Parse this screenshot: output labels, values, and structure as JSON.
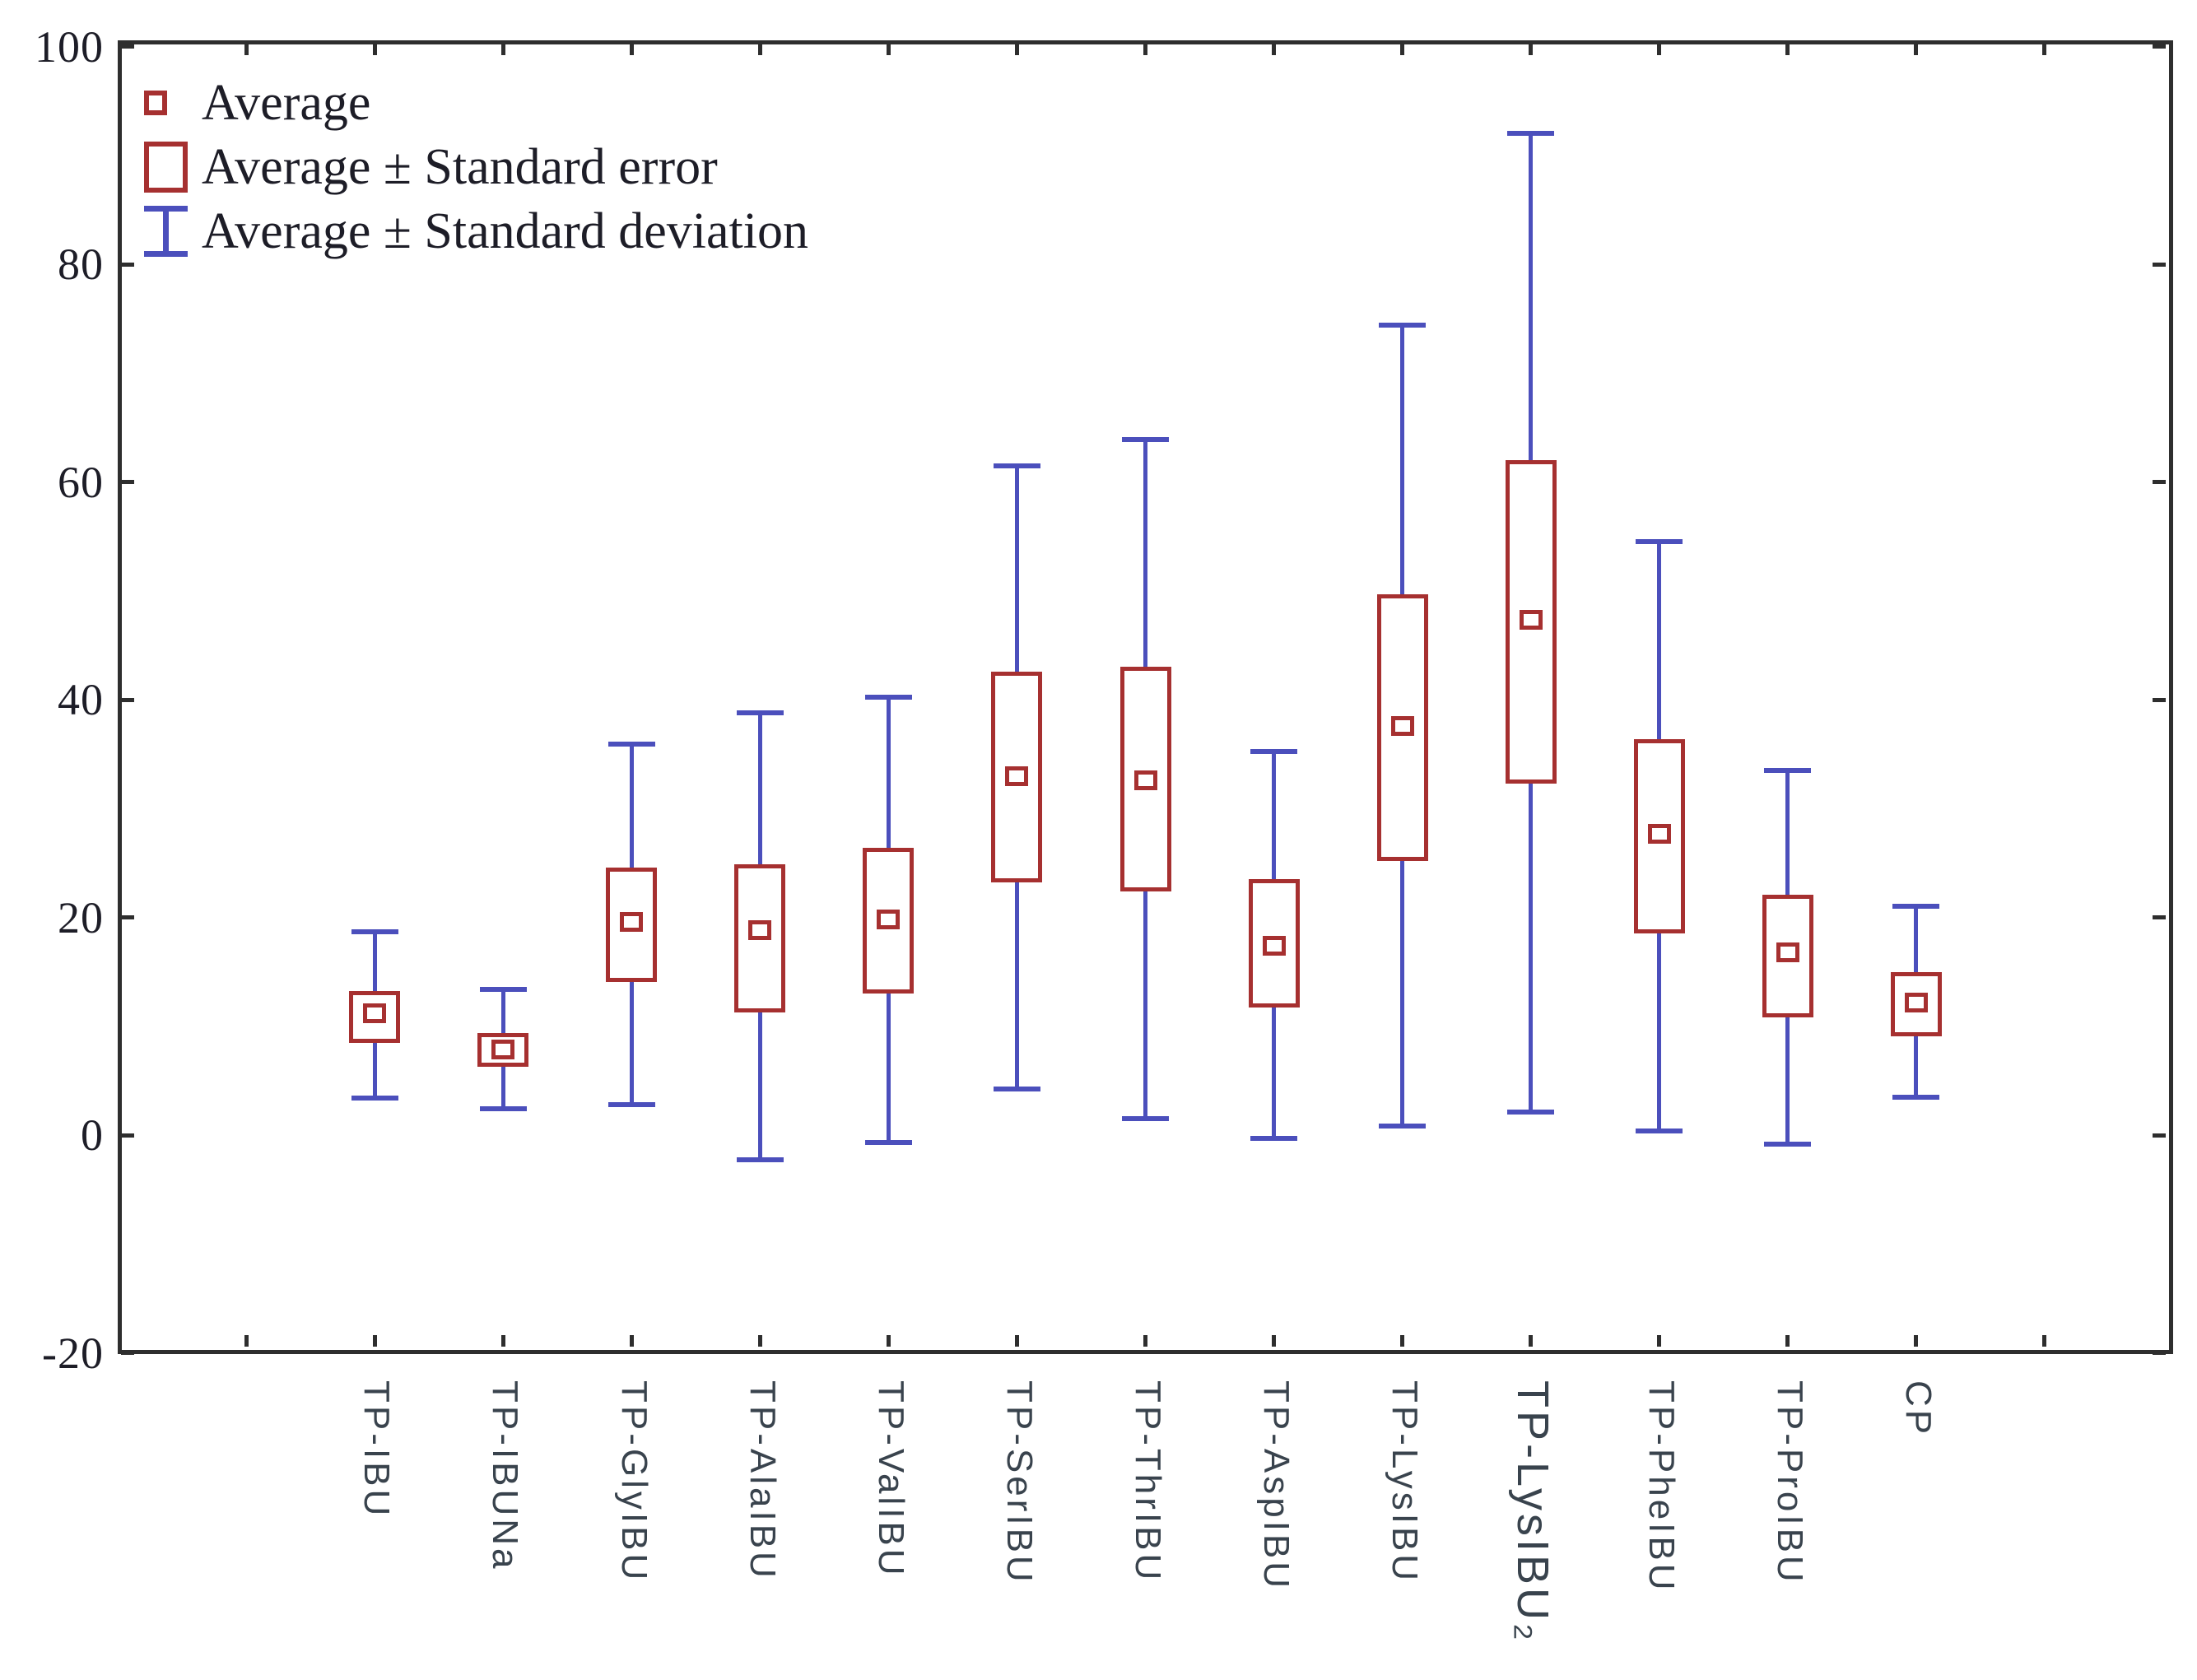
{
  "figure": {
    "background": "#ffffff"
  },
  "colors": {
    "box_red": "#a63030",
    "whisker_blue": "#4b4fbc",
    "axis": "#2e2e2e",
    "y_tick_text": "#1d1d27",
    "x_label_text": "#39434d",
    "legend_text": "#1d1d27"
  },
  "legend": {
    "items": [
      {
        "icon": "mean-square-icon",
        "label": "Average"
      },
      {
        "icon": "se-box-icon",
        "label": "Average ± Standard error"
      },
      {
        "icon": "sd-whisker-icon",
        "label": "Average ± Standard deviation"
      }
    ]
  },
  "y_axis": {
    "min": -20,
    "max": 100,
    "step": 20,
    "ticks": [
      100,
      80,
      60,
      40,
      20,
      0,
      -20
    ]
  },
  "chart_data": {
    "type": "box",
    "variant": "mean-standard_error-standard_deviation",
    "title": "",
    "xlabel": "",
    "ylabel": "",
    "ylim": [
      -20,
      100
    ],
    "grid": false,
    "legend_position": "top-left-inside",
    "categories": [
      "TP-IBU",
      "TP-IBUNa",
      "TP-GlyIBU",
      "TP-AlaIBU",
      "TP-ValIBU",
      "TP-SerIBU",
      "TP-ThrIBU",
      "TP-AspIBU",
      "TP-LysIBU",
      "TP-LysIBU₂",
      "TP-PheIBU",
      "TP-ProIBU",
      "CP"
    ],
    "points": [
      {
        "category": "TP-IBU",
        "mean": 11.2,
        "se_low": 8.5,
        "se_high": 13.2,
        "sd_low": 3.4,
        "sd_high": 18.7,
        "large_label": false
      },
      {
        "category": "TP-IBUNa",
        "mean": 7.9,
        "se_low": 6.3,
        "se_high": 9.4,
        "sd_low": 2.4,
        "sd_high": 13.4,
        "large_label": false
      },
      {
        "category": "TP-GlyIBU",
        "mean": 19.6,
        "se_low": 14.1,
        "se_high": 24.6,
        "sd_low": 2.8,
        "sd_high": 35.9,
        "large_label": false
      },
      {
        "category": "TP-AlaIBU",
        "mean": 18.8,
        "se_low": 11.3,
        "se_high": 24.9,
        "sd_low": -2.3,
        "sd_high": 38.8,
        "large_label": false
      },
      {
        "category": "TP-ValIBU",
        "mean": 19.8,
        "se_low": 13.0,
        "se_high": 26.4,
        "sd_low": -0.7,
        "sd_high": 40.2,
        "large_label": false
      },
      {
        "category": "TP-SerIBU",
        "mean": 33.0,
        "se_low": 23.2,
        "se_high": 42.6,
        "sd_low": 4.2,
        "sd_high": 61.5,
        "large_label": false
      },
      {
        "category": "TP-ThrIBU",
        "mean": 32.6,
        "se_low": 22.4,
        "se_high": 43.0,
        "sd_low": 1.5,
        "sd_high": 63.9,
        "large_label": false
      },
      {
        "category": "TP-AspIBU",
        "mean": 17.4,
        "se_low": 11.7,
        "se_high": 23.5,
        "sd_low": -0.3,
        "sd_high": 35.2,
        "large_label": false
      },
      {
        "category": "TP-LysIBU",
        "mean": 37.6,
        "se_low": 25.2,
        "se_high": 49.7,
        "sd_low": 0.8,
        "sd_high": 74.4,
        "large_label": false
      },
      {
        "category": "TP-LysIBU₂",
        "mean": 47.3,
        "se_low": 32.3,
        "se_high": 62.0,
        "sd_low": 2.1,
        "sd_high": 92.0,
        "large_label": true
      },
      {
        "category": "TP-PheIBU",
        "mean": 27.7,
        "se_low": 18.5,
        "se_high": 36.4,
        "sd_low": 0.4,
        "sd_high": 54.5,
        "large_label": false
      },
      {
        "category": "TP-ProIBU",
        "mean": 16.8,
        "se_low": 10.8,
        "se_high": 22.1,
        "sd_low": -0.8,
        "sd_high": 33.5,
        "large_label": false
      },
      {
        "category": "CP",
        "mean": 12.2,
        "se_low": 9.1,
        "se_high": 15.0,
        "sd_low": 3.5,
        "sd_high": 21.0,
        "large_label": false
      }
    ]
  }
}
